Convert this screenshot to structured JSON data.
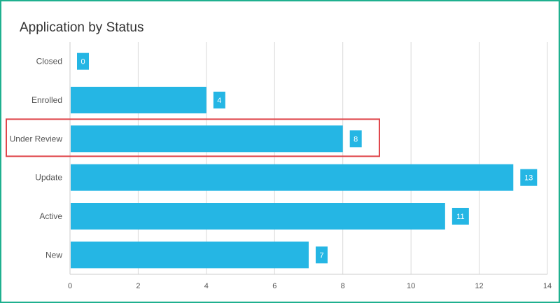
{
  "chart_data": {
    "type": "bar",
    "orientation": "horizontal",
    "title": "Application by Status",
    "categories": [
      "Closed",
      "Enrolled",
      "Under Review",
      "Update",
      "Active",
      "New"
    ],
    "values": [
      0,
      4,
      8,
      13,
      11,
      7
    ],
    "xlim": [
      0,
      14
    ],
    "x_ticks": [
      "0",
      "2",
      "4",
      "6",
      "8",
      "10",
      "12",
      "14"
    ],
    "grid": "vertical",
    "data_labels": true,
    "bar_color": "#25b6e4",
    "highlighted_category": "Under Review",
    "highlight_color": "#e0474c"
  }
}
